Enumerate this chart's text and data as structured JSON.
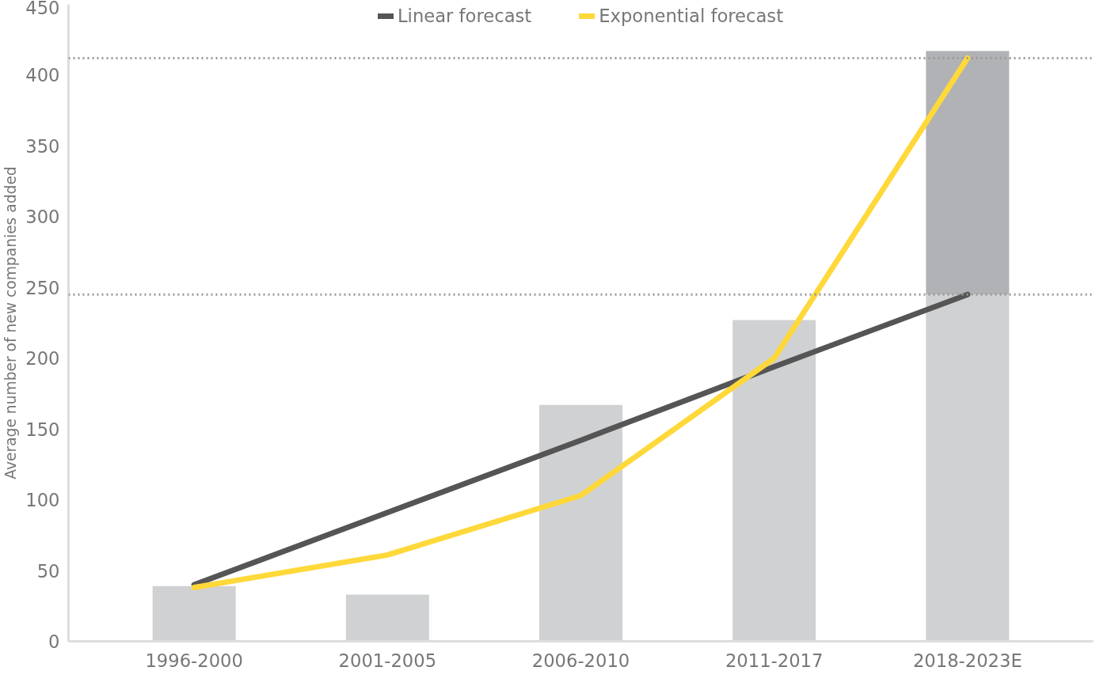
{
  "chart_data": {
    "type": "bar",
    "stacked": true,
    "categories": [
      "1996-2000",
      "2001-2005",
      "2006-2010",
      "2011-2017",
      "2018-2023E"
    ],
    "ylabel": "Average number of new companies added",
    "ylim": [
      0,
      450
    ],
    "yticks": [
      0,
      50,
      100,
      150,
      200,
      250,
      300,
      350,
      400,
      450
    ],
    "grid": false,
    "legend": "top",
    "series": [
      {
        "color": "#d0d1d3",
        "values": [
          39,
          33,
          167,
          227,
          245
        ]
      },
      {
        "color": "#b1b2b5",
        "values": [
          null,
          null,
          null,
          null,
          172
        ]
      },
      {
        "name": "Linear forecast",
        "type": "line",
        "color": "#555555",
        "values": [
          40,
          91,
          142,
          194,
          245
        ]
      },
      {
        "name": "Exponential forecast",
        "type": "line",
        "color": "#ffd83a",
        "values": [
          38,
          61,
          103,
          200,
          412
        ]
      }
    ],
    "ref_lines": [
      {
        "axis": "y",
        "value": 245,
        "color": "#999999",
        "line_style": "dotted"
      },
      {
        "axis": "y",
        "value": 412,
        "color": "#999999",
        "line_style": "dotted"
      }
    ]
  }
}
